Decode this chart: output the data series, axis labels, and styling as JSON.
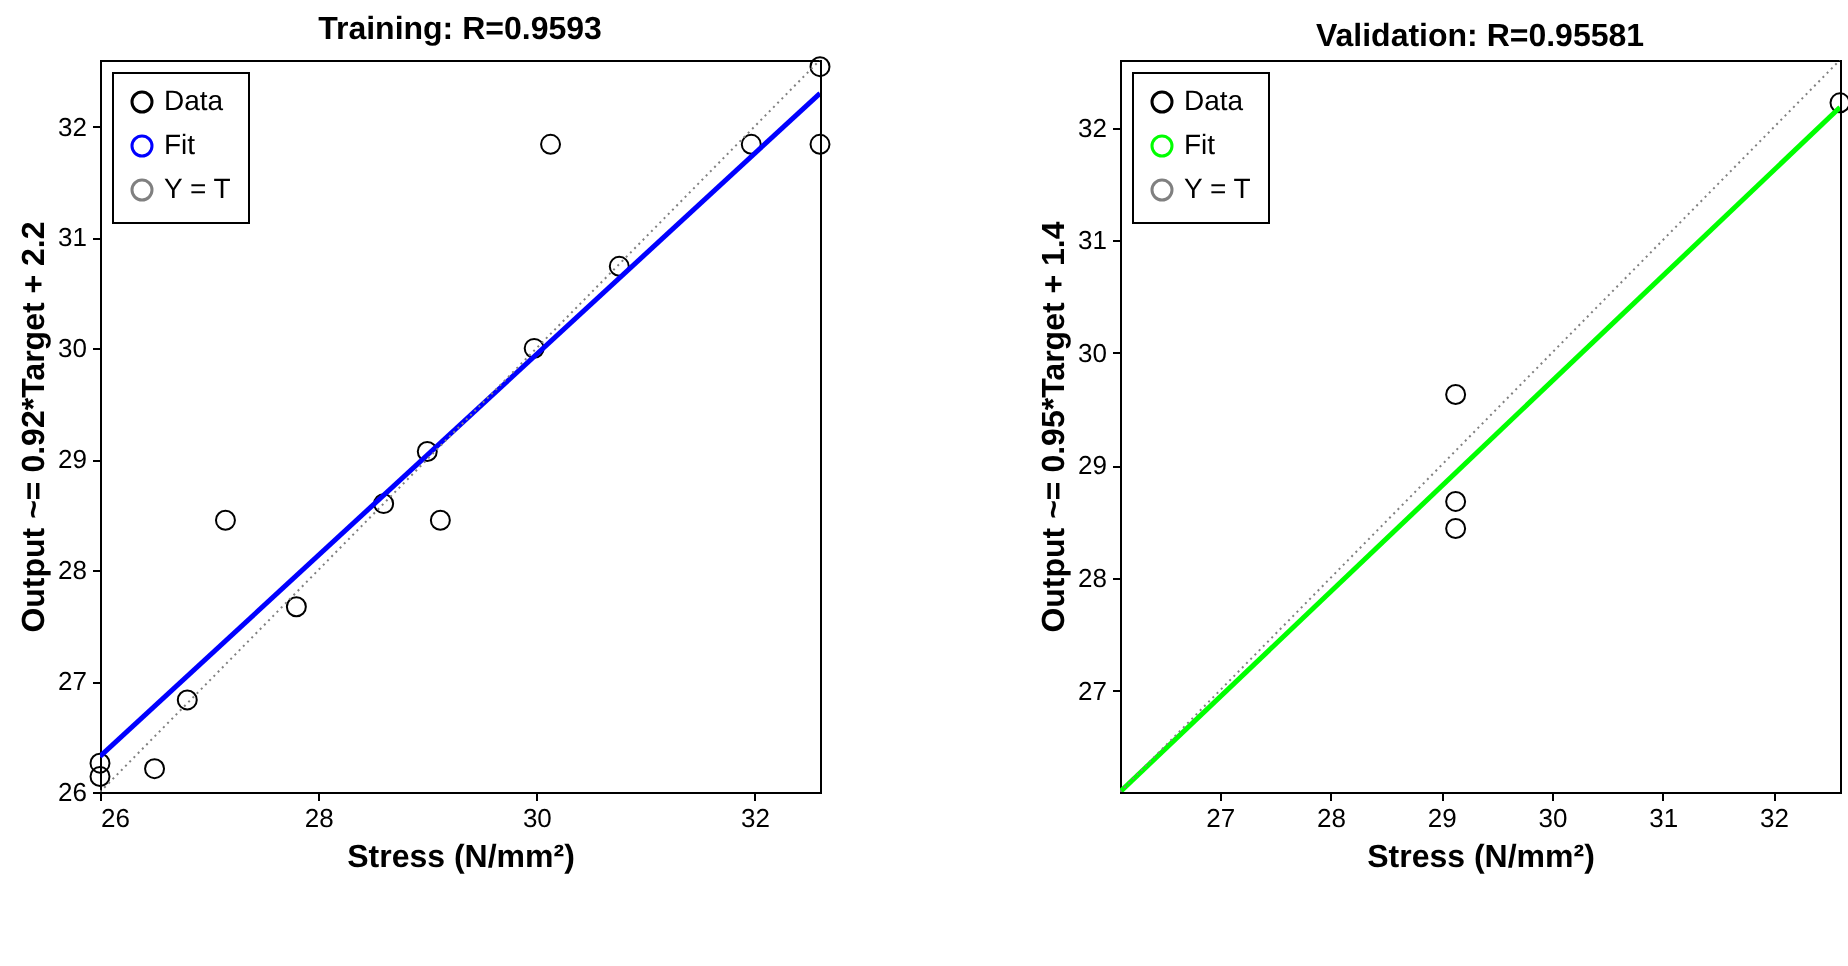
{
  "chart_data": [
    {
      "type": "scatter",
      "title": "Training: R=0.9593",
      "xlabel": "Stress (N/mm²)",
      "ylabel": "Output ~= 0.92*Target + 2.2",
      "xlim": [
        26,
        32.6
      ],
      "ylim": [
        26,
        32.6
      ],
      "xticks": [
        26,
        28,
        30,
        32
      ],
      "yticks": [
        26,
        27,
        28,
        29,
        30,
        31,
        32
      ],
      "grid": false,
      "legend": "top left",
      "series": [
        {
          "type": "scatter",
          "name": "Data",
          "color": "#000000",
          "marker": "circle",
          "x": [
            26.0,
            26.0,
            26.5,
            26.8,
            27.15,
            27.8,
            28.6,
            29.0,
            29.12,
            29.98,
            30.13,
            30.76,
            31.97,
            32.6,
            32.6
          ],
          "values": [
            26.26,
            26.14,
            26.21,
            26.83,
            28.45,
            27.67,
            28.6,
            29.07,
            28.45,
            30.0,
            31.84,
            30.74,
            31.84,
            32.54,
            31.84
          ]
        },
        {
          "type": "line",
          "name": "Fit",
          "color": "#0000ff",
          "line_style": "solid",
          "x": [
            26,
            32.6
          ],
          "values": [
            26.32,
            32.3
          ]
        },
        {
          "type": "line",
          "name": "Y = T",
          "color": "#808080",
          "line_style": "dotted",
          "x": [
            26,
            32.6
          ],
          "values": [
            26,
            32.6
          ]
        }
      ]
    },
    {
      "type": "scatter",
      "title": "Validation: R=0.95581",
      "xlabel": "Stress (N/mm²)",
      "ylabel": "Output ~= 0.95*Target + 1.4",
      "xlim": [
        26.1,
        32.6
      ],
      "ylim": [
        26.1,
        32.6
      ],
      "xticks": [
        27,
        28,
        29,
        30,
        31,
        32
      ],
      "yticks": [
        27,
        28,
        29,
        30,
        31,
        32
      ],
      "grid": false,
      "legend": "top left",
      "series": [
        {
          "type": "scatter",
          "name": "Data",
          "color": "#000000",
          "marker": "circle",
          "x": [
            29.13,
            29.13,
            29.13,
            32.6
          ],
          "values": [
            29.63,
            28.68,
            28.44,
            32.22
          ]
        },
        {
          "type": "line",
          "name": "Fit",
          "color": "#00ff00",
          "line_style": "solid",
          "x": [
            26.1,
            32.6
          ],
          "values": [
            26.1,
            32.18
          ]
        },
        {
          "type": "line",
          "name": "Y = T",
          "color": "#808080",
          "line_style": "dotted",
          "x": [
            26.1,
            32.6
          ],
          "values": [
            26.1,
            32.6
          ]
        }
      ]
    }
  ]
}
